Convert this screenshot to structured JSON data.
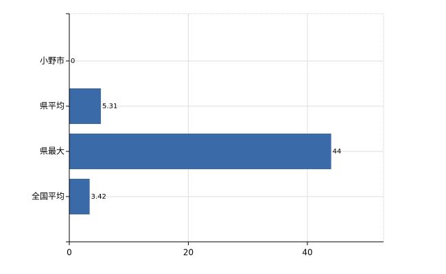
{
  "chart_data": {
    "type": "bar",
    "orientation": "horizontal",
    "categories": [
      "小野市",
      "県平均",
      "県最大",
      "全国平均"
    ],
    "values": [
      0,
      5.31,
      44,
      3.42
    ],
    "color": "#3a6aa8",
    "xlim": [
      0,
      52.8
    ],
    "xticks": [
      0,
      20,
      40
    ],
    "grid": true
  }
}
